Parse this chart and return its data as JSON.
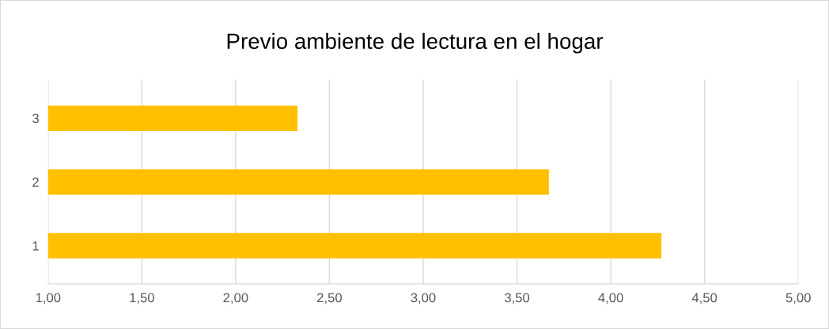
{
  "chart_data": {
    "type": "bar",
    "orientation": "horizontal",
    "title": "Previo ambiente de lectura en el hogar",
    "categories": [
      "3",
      "2",
      "1"
    ],
    "values": [
      2.33,
      3.67,
      4.27
    ],
    "color": "#ffc000",
    "xlim": [
      1,
      5
    ],
    "xticks": [
      {
        "value": 1,
        "label": "1,00"
      },
      {
        "value": 1.5,
        "label": "1,50"
      },
      {
        "value": 2,
        "label": "2,00"
      },
      {
        "value": 2.5,
        "label": "2,50"
      },
      {
        "value": 3,
        "label": "3,00"
      },
      {
        "value": 3.5,
        "label": "3,50"
      },
      {
        "value": 4,
        "label": "4,00"
      },
      {
        "value": 4.5,
        "label": "4,50"
      },
      {
        "value": 5,
        "label": "5,00"
      }
    ],
    "grid": "x",
    "legend": false
  }
}
